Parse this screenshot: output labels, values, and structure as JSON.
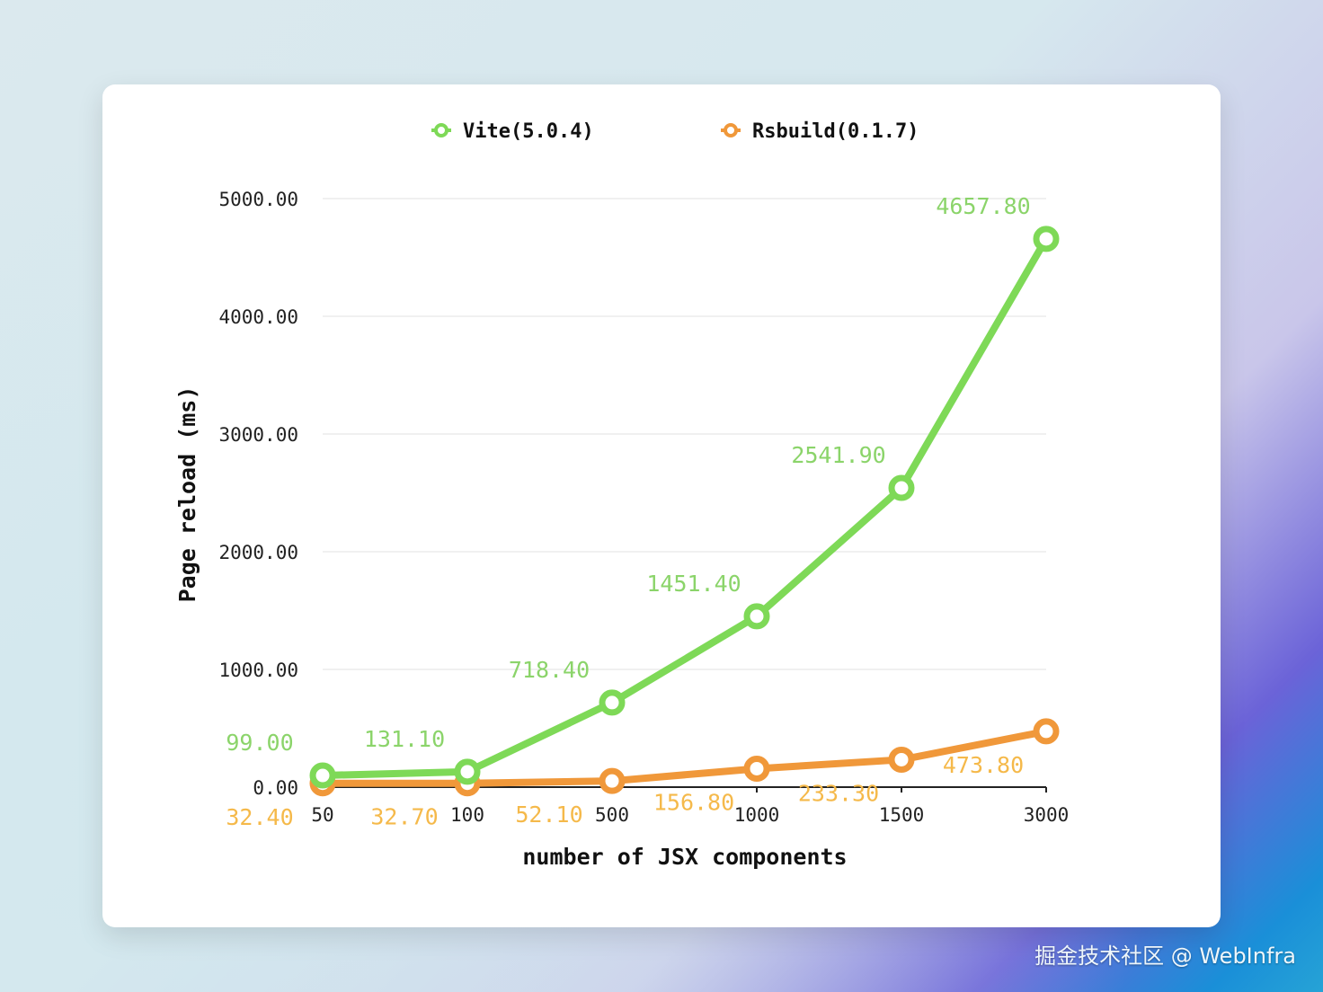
{
  "chart_data": {
    "type": "line",
    "categories": [
      "50",
      "100",
      "500",
      "1000",
      "1500",
      "3000"
    ],
    "series": [
      {
        "name": "Vite(5.0.4)",
        "color": "#7ed957",
        "label_color": "#8bd46a",
        "values": [
          99.0,
          131.1,
          718.4,
          1451.4,
          2541.9,
          4657.8
        ]
      },
      {
        "name": "Rsbuild(0.1.7)",
        "color": "#f0983a",
        "label_color": "#f5b94a",
        "values": [
          32.4,
          32.7,
          52.1,
          156.8,
          233.3,
          473.8
        ]
      }
    ],
    "xlabel": "number of JSX components",
    "ylabel": "Page reload (ms)",
    "ylim": [
      0,
      5000
    ],
    "yticks": [
      0,
      1000,
      2000,
      3000,
      4000,
      5000
    ],
    "grid": true,
    "legend": "top"
  },
  "watermark": "掘金技术社区 @ WebInfra"
}
